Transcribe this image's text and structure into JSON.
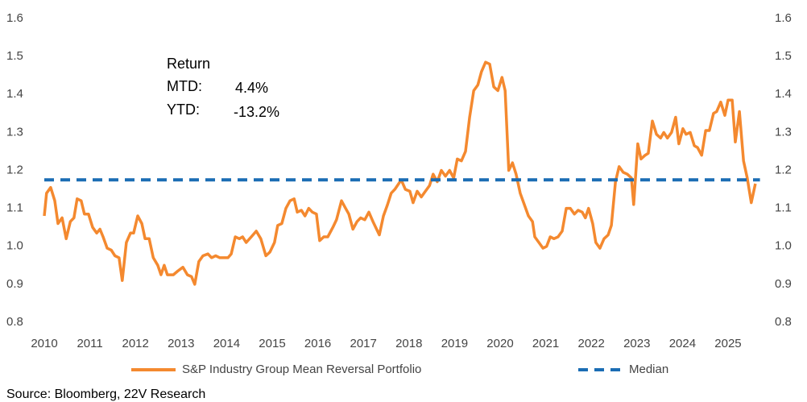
{
  "chart_data": {
    "type": "line",
    "annotations": [
      "Return",
      "MTD:",
      "4.4%",
      "YTD:",
      "-13.2%"
    ],
    "source": "Source: Bloomberg, 22V Research",
    "xlim": [
      2010,
      2025.7
    ],
    "xticks": [
      2010,
      2011,
      2012,
      2013,
      2014,
      2015,
      2016,
      2017,
      2018,
      2019,
      2020,
      2021,
      2022,
      2023,
      2024,
      2025
    ],
    "ylim": [
      0.8,
      1.6
    ],
    "yticks": [
      {
        "value": 0.8,
        "label": "0.8"
      },
      0.9,
      {
        "value": 1.0,
        "label": "1.0"
      },
      1.1,
      1.2,
      1.3,
      1.4,
      1.5,
      1.6
    ],
    "y2lim": [
      0.8,
      1.6
    ],
    "y2ticks": [
      {
        "value": 0.8,
        "label": "0.8"
      },
      0.9,
      {
        "value": 1.0,
        "label": "1.0"
      },
      1.1,
      1.2,
      1.3,
      1.4,
      1.5,
      1.6
    ],
    "grid": false,
    "legend": "bottom",
    "series": [
      {
        "name": "S&P Industry Group Mean Reversal Portfolio",
        "color": "#f4892f",
        "style": "solid",
        "x": [
          2010,
          2010.05,
          2010.14,
          2010.23,
          2010.3,
          2010.39,
          2010.48,
          2010.57,
          2010.65,
          2010.72,
          2010.81,
          2010.88,
          2010.97,
          2011.06,
          2011.15,
          2011.22,
          2011.29,
          2011.38,
          2011.47,
          2011.55,
          2011.64,
          2011.71,
          2011.8,
          2011.89,
          2011.96,
          2012.05,
          2012.14,
          2012.21,
          2012.3,
          2012.39,
          2012.49,
          2012.56,
          2012.63,
          2012.7,
          2012.83,
          2012.93,
          2013.04,
          2013.14,
          2013.23,
          2013.3,
          2013.39,
          2013.48,
          2013.59,
          2013.67,
          2013.76,
          2013.85,
          2014.03,
          2014.1,
          2014.19,
          2014.28,
          2014.35,
          2014.43,
          2014.54,
          2014.65,
          2014.75,
          2014.86,
          2014.95,
          2015.05,
          2015.12,
          2015.21,
          2015.3,
          2015.39,
          2015.48,
          2015.55,
          2015.64,
          2015.72,
          2015.8,
          2015.88,
          2015.97,
          2016.04,
          2016.13,
          2016.22,
          2016.33,
          2016.41,
          2016.52,
          2016.61,
          2016.68,
          2016.77,
          2016.86,
          2016.94,
          2017.03,
          2017.12,
          2017.21,
          2017.35,
          2017.44,
          2017.53,
          2017.61,
          2017.69,
          2017.83,
          2017.92,
          2018.02,
          2018.09,
          2018.18,
          2018.27,
          2018.36,
          2018.45,
          2018.53,
          2018.62,
          2018.71,
          2018.8,
          2018.89,
          2018.98,
          2019.06,
          2019.15,
          2019.24,
          2019.33,
          2019.42,
          2019.51,
          2019.59,
          2019.68,
          2019.77,
          2019.86,
          2019.95,
          2020.04,
          2020.11,
          2020.19,
          2020.27,
          2020.35,
          2020.44,
          2020.53,
          2020.62,
          2020.71,
          2020.76,
          2020.85,
          2020.94,
          2021.02,
          2021.1,
          2021.18,
          2021.27,
          2021.36,
          2021.45,
          2021.54,
          2021.63,
          2021.71,
          2021.8,
          2021.87,
          2021.94,
          2022.03,
          2022.1,
          2022.19,
          2022.28,
          2022.37,
          2022.44,
          2022.53,
          2022.61,
          2022.7,
          2022.79,
          2022.88,
          2022.93,
          2023.02,
          2023.09,
          2023.18,
          2023.25,
          2023.34,
          2023.43,
          2023.52,
          2023.59,
          2023.67,
          2023.76,
          2023.85,
          2023.92,
          2024.01,
          2024.08,
          2024.17,
          2024.26,
          2024.33,
          2024.42,
          2024.51,
          2024.59,
          2024.68,
          2024.75,
          2024.84,
          2024.93,
          2025,
          2025.09,
          2025.16,
          2025.25,
          2025.34,
          2025.42,
          2025.51,
          2025.6
        ],
        "values": [
          1.08,
          1.14,
          1.155,
          1.12,
          1.06,
          1.075,
          1.02,
          1.065,
          1.075,
          1.125,
          1.12,
          1.085,
          1.085,
          1.05,
          1.035,
          1.045,
          1.025,
          0.995,
          0.99,
          0.975,
          0.97,
          0.91,
          1.01,
          1.035,
          1.035,
          1.08,
          1.06,
          1.02,
          1.02,
          0.97,
          0.95,
          0.925,
          0.95,
          0.925,
          0.925,
          0.935,
          0.945,
          0.925,
          0.92,
          0.9,
          0.96,
          0.975,
          0.98,
          0.97,
          0.975,
          0.97,
          0.97,
          0.98,
          1.025,
          1.02,
          1.025,
          1.01,
          1.025,
          1.04,
          1.02,
          0.975,
          0.985,
          1.01,
          1.055,
          1.06,
          1.1,
          1.12,
          1.125,
          1.09,
          1.095,
          1.08,
          1.1,
          1.09,
          1.085,
          1.015,
          1.025,
          1.025,
          1.05,
          1.07,
          1.12,
          1.1,
          1.085,
          1.045,
          1.065,
          1.075,
          1.07,
          1.09,
          1.065,
          1.03,
          1.08,
          1.11,
          1.14,
          1.15,
          1.175,
          1.15,
          1.145,
          1.115,
          1.145,
          1.13,
          1.145,
          1.16,
          1.19,
          1.17,
          1.2,
          1.185,
          1.2,
          1.18,
          1.23,
          1.225,
          1.25,
          1.34,
          1.41,
          1.425,
          1.46,
          1.485,
          1.48,
          1.42,
          1.41,
          1.445,
          1.41,
          1.2,
          1.22,
          1.19,
          1.14,
          1.11,
          1.08,
          1.065,
          1.025,
          1.01,
          0.995,
          1.0,
          1.025,
          1.02,
          1.025,
          1.04,
          1.1,
          1.1,
          1.085,
          1.095,
          1.09,
          1.075,
          1.1,
          1.06,
          1.01,
          0.995,
          1.02,
          1.03,
          1.055,
          1.17,
          1.21,
          1.195,
          1.19,
          1.18,
          1.11,
          1.27,
          1.23,
          1.24,
          1.245,
          1.33,
          1.295,
          1.285,
          1.3,
          1.285,
          1.3,
          1.34,
          1.27,
          1.31,
          1.295,
          1.3,
          1.265,
          1.26,
          1.24,
          1.305,
          1.305,
          1.35,
          1.355,
          1.38,
          1.345,
          1.385,
          1.385,
          1.275,
          1.355,
          1.225,
          1.18,
          1.115,
          1.165
        ]
      },
      {
        "name": "Median",
        "color": "#1b6db4",
        "style": "dashed",
        "x": [
          2010,
          2025.7
        ],
        "values": [
          1.175,
          1.175
        ]
      }
    ]
  }
}
